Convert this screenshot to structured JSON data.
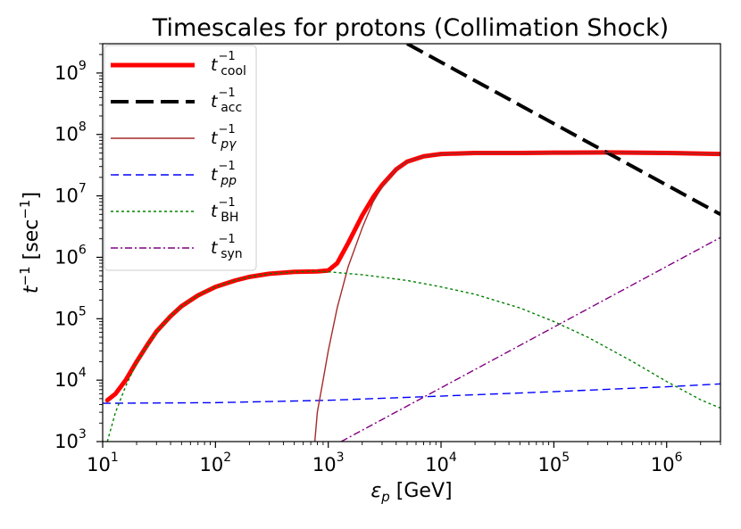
{
  "chart_data": {
    "type": "line",
    "title": "Timescales for protons (Collimation Shock)",
    "xlabel": "ε_p [GeV]",
    "ylabel": "t^-1 [sec^-1]",
    "xscale": "log",
    "yscale": "log",
    "xlim": [
      10,
      3000000
    ],
    "ylim": [
      1000,
      3000000000
    ],
    "x_ticks": [
      {
        "base": "10",
        "exp": "1",
        "value": 10
      },
      {
        "base": "10",
        "exp": "2",
        "value": 100
      },
      {
        "base": "10",
        "exp": "3",
        "value": 1000
      },
      {
        "base": "10",
        "exp": "4",
        "value": 10000
      },
      {
        "base": "10",
        "exp": "5",
        "value": 100000
      },
      {
        "base": "10",
        "exp": "6",
        "value": 1000000
      }
    ],
    "y_ticks": [
      {
        "base": "10",
        "exp": "3",
        "value": 1000
      },
      {
        "base": "10",
        "exp": "4",
        "value": 10000
      },
      {
        "base": "10",
        "exp": "5",
        "value": 100000
      },
      {
        "base": "10",
        "exp": "6",
        "value": 1000000
      },
      {
        "base": "10",
        "exp": "7",
        "value": 10000000
      },
      {
        "base": "10",
        "exp": "8",
        "value": 100000000
      },
      {
        "base": "10",
        "exp": "9",
        "value": 1000000000
      }
    ],
    "legend_position": "upper-left",
    "series": [
      {
        "name": "cool",
        "label_main": "t",
        "label_sub": "cool",
        "label_sup": "−1",
        "color": "#ff0000",
        "style": "solid",
        "x": [
          11,
          13,
          16,
          20,
          25,
          30,
          40,
          50,
          70,
          100,
          150,
          200,
          300,
          500,
          800,
          1000,
          1200,
          1500,
          2000,
          2500,
          3000,
          4000,
          5000,
          7000,
          10000,
          20000,
          50000,
          100000,
          300000,
          1000000,
          3000000
        ],
        "y": [
          4700,
          6000,
          10000,
          20000,
          38000,
          62000,
          110000,
          160000,
          240000,
          330000,
          420000,
          480000,
          540000,
          580000,
          590000,
          610000,
          800000,
          1700000,
          4800000,
          9500000,
          15000000,
          27000000,
          36000000,
          44000000,
          48000000,
          50000000,
          50000000,
          50500000,
          51000000,
          50000000,
          48000000
        ]
      },
      {
        "name": "acc",
        "label_main": "t",
        "label_sub": "acc",
        "label_sup": "−1",
        "color": "#000000",
        "style": "dashed",
        "x": [
          5000,
          3000000
        ],
        "y": [
          3000000000,
          5000000
        ]
      },
      {
        "name": "pgamma",
        "label_main": "t",
        "label_sub": "pγ",
        "label_sup": "−1",
        "color": "#a52a2a",
        "style": "solid-thin",
        "x": [
          760,
          800,
          900,
          1000,
          1200,
          1500,
          2000,
          2500,
          3000,
          4000,
          5000,
          7000,
          10000,
          20000,
          50000,
          100000,
          300000,
          1000000,
          3000000
        ],
        "y": [
          1000,
          3000,
          10000,
          30000,
          150000,
          700000,
          3000000,
          8000000,
          14000000,
          27000000,
          36000000,
          44000000,
          48000000,
          50000000,
          50000000,
          50500000,
          51000000,
          50000000,
          48000000
        ]
      },
      {
        "name": "pp",
        "label_main": "t",
        "label_sub": "pp",
        "label_sup": "−1",
        "color": "#0000ff",
        "style": "dashed-thin",
        "x": [
          10,
          100,
          1000,
          10000,
          100000,
          1000000,
          3000000
        ],
        "y": [
          4200,
          4300,
          4700,
          5500,
          6500,
          7800,
          8700
        ]
      },
      {
        "name": "bh",
        "label_main": "t",
        "label_sub": "BH",
        "label_sup": "−1",
        "color": "#008000",
        "style": "dotted",
        "x": [
          11,
          13,
          16,
          20,
          25,
          30,
          40,
          50,
          70,
          100,
          150,
          200,
          300,
          500,
          800,
          1000,
          2000,
          5000,
          10000,
          20000,
          50000,
          100000,
          200000,
          500000,
          1000000,
          2000000,
          3000000
        ],
        "y": [
          1000,
          3000,
          8000,
          19000,
          37000,
          60000,
          110000,
          160000,
          240000,
          330000,
          420000,
          480000,
          540000,
          580000,
          590000,
          580000,
          520000,
          420000,
          330000,
          250000,
          150000,
          90000,
          50000,
          20000,
          9500,
          4800,
          3500
        ]
      },
      {
        "name": "syn",
        "label_main": "t",
        "label_sub": "syn",
        "label_sup": "−1",
        "color": "#800080",
        "style": "dashdot",
        "x": [
          1300,
          3000000
        ],
        "y": [
          1000,
          2100000
        ]
      }
    ]
  }
}
